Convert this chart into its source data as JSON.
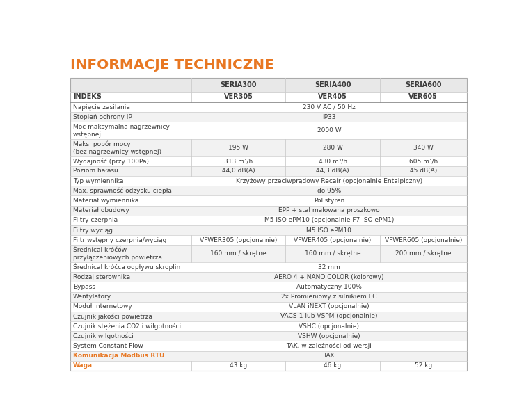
{
  "title": "INFORMACJE TECHNICZNE",
  "title_color": "#e87722",
  "header_bg": "#e8e8e8",
  "row_alt_bg": "#f2f2f2",
  "row_bg": "#ffffff",
  "separator_color": "#cccccc",
  "thick_separator_color": "#888888",
  "text_color": "#3a3a3a",
  "orange_color": "#e87722",
  "header_labels": [
    "SERIA300",
    "SERIA400",
    "SERIA600"
  ],
  "indeks_vals": [
    "VER305",
    "VER405",
    "VER605"
  ],
  "rows": [
    {
      "label": "Napięcie zasilania",
      "values": [
        "230 V AC / 50 Hz"
      ],
      "span": true,
      "bold_label": false,
      "alt": false,
      "multiline": false
    },
    {
      "label": "Stopień ochrony IP",
      "values": [
        "IP33"
      ],
      "span": true,
      "bold_label": false,
      "alt": true,
      "multiline": false
    },
    {
      "label": "Moc maksymalna nagrzewnicy\nwstępnej",
      "values": [
        "2000 W"
      ],
      "span": true,
      "bold_label": false,
      "alt": false,
      "multiline": true
    },
    {
      "label": "Maks. pobór mocy\n(bez nagrzewnicy wstępnej)",
      "values": [
        "195 W",
        "280 W",
        "340 W"
      ],
      "span": false,
      "bold_label": false,
      "alt": true,
      "multiline": true
    },
    {
      "label": "Wydajność (przy 100Pa)",
      "values": [
        "313 m³/h",
        "430 m³/h",
        "605 m³/h"
      ],
      "span": false,
      "bold_label": false,
      "alt": false,
      "multiline": false
    },
    {
      "label": "Poziom hałasu",
      "values": [
        "44,0 dB(A)",
        "44,3 dB(A)",
        "45 dB(A)"
      ],
      "span": false,
      "bold_label": false,
      "alt": true,
      "multiline": false
    },
    {
      "label": "Typ wymiennika",
      "values": [
        "Krzyżowy przeciwprądowy Recair (opcjonalnie Entalpiczny)"
      ],
      "span": true,
      "bold_label": false,
      "alt": false,
      "multiline": false
    },
    {
      "label": "Max. sprawność odzysku ciepła",
      "values": [
        "do 95%"
      ],
      "span": true,
      "bold_label": false,
      "alt": true,
      "multiline": false
    },
    {
      "label": "Materiał wymiennika",
      "values": [
        "Polistyren"
      ],
      "span": true,
      "bold_label": false,
      "alt": false,
      "multiline": false
    },
    {
      "label": "Materiał obudowy",
      "values": [
        "EPP + stal malowana proszkowo"
      ],
      "span": true,
      "bold_label": false,
      "alt": true,
      "multiline": false
    },
    {
      "label": "Filtry czerpnia",
      "values": [
        "M5 ISO ePM10 (opcjonalnie F7 ISO ePM1)"
      ],
      "span": true,
      "bold_label": false,
      "alt": false,
      "multiline": false
    },
    {
      "label": "Filtry wyciąg",
      "values": [
        "M5 ISO ePM10"
      ],
      "span": true,
      "bold_label": false,
      "alt": true,
      "multiline": false
    },
    {
      "label": "Filtr wstępny czerpnia/wyciąg",
      "values": [
        "VFWER305 (opcjonalnie)",
        "VFWER405 (opcjonalnie)",
        "VFWER605 (opcjonalnie)"
      ],
      "span": false,
      "bold_label": false,
      "alt": false,
      "multiline": false
    },
    {
      "label": "Średnical króćów\nprzyłączeniowych powietrza",
      "values": [
        "160 mm / skrętne",
        "160 mm / skrętne",
        "200 mm / skrętne"
      ],
      "span": false,
      "bold_label": false,
      "alt": true,
      "multiline": true
    },
    {
      "label": "Średnical króćca odpływu skroplin",
      "values": [
        "32 mm"
      ],
      "span": true,
      "bold_label": false,
      "alt": false,
      "multiline": false
    },
    {
      "label": "Rodzaj sterownika",
      "values": [
        "AERO 4 + NANO COLOR (kolorowy)"
      ],
      "span": true,
      "bold_label": false,
      "alt": true,
      "multiline": false
    },
    {
      "label": "Bypass",
      "values": [
        "Automatyczny 100%"
      ],
      "span": true,
      "bold_label": false,
      "alt": false,
      "multiline": false
    },
    {
      "label": "Wentylatory",
      "values": [
        "2x Promieniowy z silnikiem EC"
      ],
      "span": true,
      "bold_label": false,
      "alt": true,
      "multiline": false
    },
    {
      "label": "Moduł internetowy",
      "values": [
        "VLAN iNEXT (opcjonalnie)"
      ],
      "span": true,
      "bold_label": false,
      "alt": false,
      "multiline": false
    },
    {
      "label": "Czujnik jakości powietrza",
      "values": [
        "VACS-1 lub VSPM (opcjonalnie)"
      ],
      "span": true,
      "bold_label": false,
      "alt": true,
      "multiline": false
    },
    {
      "label": "Czujnik stężenia CO2 i wilgotności",
      "values": [
        "VSHC (opcjonalnie)"
      ],
      "span": true,
      "bold_label": false,
      "alt": false,
      "multiline": false
    },
    {
      "label": "Czujnik wilgotności",
      "values": [
        "VSHW (opcjonalnie)"
      ],
      "span": true,
      "bold_label": false,
      "alt": true,
      "multiline": false
    },
    {
      "label": "System Constant Flow",
      "values": [
        "TAK, w zależności od wersji"
      ],
      "span": true,
      "bold_label": false,
      "alt": false,
      "multiline": false
    },
    {
      "label": "Komunikacja Modbus RTU",
      "values": [
        "TAK"
      ],
      "span": true,
      "bold_label": true,
      "alt": true,
      "multiline": false
    },
    {
      "label": "Waga",
      "values": [
        "43 kg",
        "46 kg",
        "52 kg"
      ],
      "span": false,
      "bold_label": true,
      "alt": false,
      "multiline": false
    }
  ]
}
